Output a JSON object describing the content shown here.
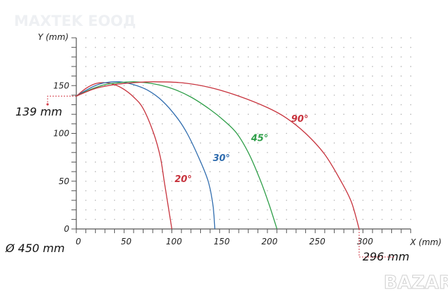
{
  "watermark": "MAXTEK ЕООД",
  "logo": "BAZAR",
  "annotations": {
    "start_height": "139 mm",
    "max_reach": "296 mm",
    "diameter": "Ø 450 mm"
  },
  "chart_data": {
    "type": "line",
    "xlabel": "X (mm)",
    "ylabel": "Y (mm)",
    "xlim": [
      0,
      350
    ],
    "ylim": [
      0,
      200
    ],
    "x_ticks": [
      0,
      50,
      100,
      150,
      200,
      250,
      300
    ],
    "y_ticks": [
      0,
      50,
      100,
      150
    ],
    "x_tick_labels": [
      "0",
      "50",
      "100",
      "150",
      "200",
      "250",
      "300"
    ],
    "y_tick_labels": [
      "0",
      "50",
      "100",
      "150"
    ],
    "grid": "dotted, 10 mm",
    "series": [
      {
        "name": "20°",
        "color": "#c7323c",
        "points": [
          [
            0,
            139
          ],
          [
            10,
            147
          ],
          [
            20,
            152
          ],
          [
            30,
            153
          ],
          [
            40,
            151
          ],
          [
            50,
            146
          ],
          [
            60,
            138
          ],
          [
            70,
            126
          ],
          [
            81,
            100
          ],
          [
            88,
            75
          ],
          [
            92,
            50
          ],
          [
            96,
            25
          ],
          [
            100,
            0
          ]
        ]
      },
      {
        "name": "30°",
        "color": "#2f6cae",
        "points": [
          [
            0,
            139
          ],
          [
            10,
            145
          ],
          [
            20,
            150
          ],
          [
            30,
            153
          ],
          [
            45,
            154
          ],
          [
            60,
            151
          ],
          [
            75,
            145
          ],
          [
            90,
            134
          ],
          [
            105,
            117
          ],
          [
            116,
            100
          ],
          [
            128,
            75
          ],
          [
            138,
            50
          ],
          [
            143,
            25
          ],
          [
            145,
            0
          ]
        ]
      },
      {
        "name": "45°",
        "color": "#2e9e48",
        "points": [
          [
            0,
            139
          ],
          [
            15,
            146
          ],
          [
            30,
            151
          ],
          [
            45,
            153
          ],
          [
            60,
            154
          ],
          [
            80,
            152
          ],
          [
            100,
            147
          ],
          [
            120,
            138
          ],
          [
            140,
            125
          ],
          [
            155,
            113
          ],
          [
            168,
            100
          ],
          [
            181,
            78
          ],
          [
            193,
            50
          ],
          [
            202,
            25
          ],
          [
            210,
            0
          ]
        ]
      },
      {
        "name": "90°",
        "color": "#c7323c",
        "points": [
          [
            0,
            139
          ],
          [
            20,
            147
          ],
          [
            40,
            151
          ],
          [
            60,
            153
          ],
          [
            80,
            154
          ],
          [
            110,
            153
          ],
          [
            140,
            148
          ],
          [
            170,
            139
          ],
          [
            200,
            127
          ],
          [
            220,
            116
          ],
          [
            240,
            100
          ],
          [
            260,
            78
          ],
          [
            277,
            50
          ],
          [
            288,
            28
          ],
          [
            296,
            0
          ]
        ]
      }
    ],
    "label_positions_data": [
      [
        100,
        52
      ],
      [
        140,
        74
      ],
      [
        180,
        95
      ],
      [
        222,
        115
      ]
    ]
  }
}
